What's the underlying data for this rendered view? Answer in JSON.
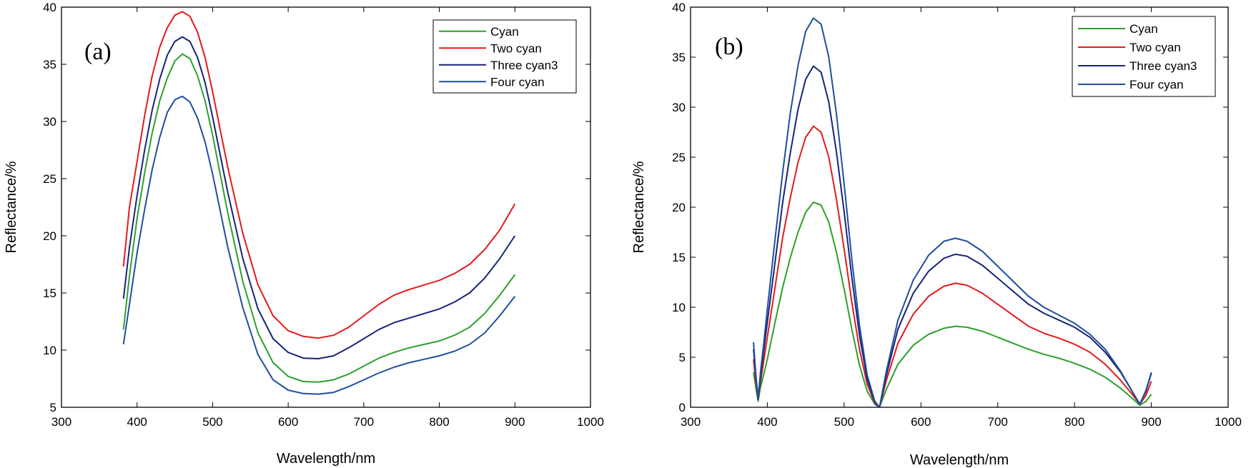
{
  "chart_data": [
    {
      "type": "line",
      "panel_label": "(a)",
      "xlabel": "Wavelength/nm",
      "ylabel": "Reflectance/%",
      "xlim": [
        300,
        1000
      ],
      "ylim": [
        5,
        40
      ],
      "xticks": [
        300,
        400,
        500,
        600,
        700,
        800,
        900,
        1000
      ],
      "yticks": [
        5,
        10,
        15,
        20,
        25,
        30,
        35,
        40
      ],
      "legend_position": "top-right",
      "series": [
        {
          "name": "Cyan",
          "color": "#2ca02c",
          "x": [
            382,
            390,
            400,
            410,
            420,
            430,
            440,
            450,
            460,
            470,
            480,
            490,
            500,
            520,
            540,
            560,
            580,
            600,
            620,
            640,
            660,
            680,
            700,
            720,
            740,
            760,
            780,
            800,
            820,
            840,
            860,
            880,
            900
          ],
          "y": [
            11.8,
            16.5,
            21.5,
            25.5,
            29,
            31.8,
            33.8,
            35.3,
            35.9,
            35.5,
            34,
            31.8,
            28.8,
            22,
            16,
            11.5,
            8.9,
            7.7,
            7.25,
            7.2,
            7.4,
            7.9,
            8.6,
            9.3,
            9.8,
            10.2,
            10.5,
            10.8,
            11.3,
            12,
            13.2,
            14.8,
            16.6
          ]
        },
        {
          "name": "Two cyan",
          "color": "#e31a1c",
          "x": [
            382,
            390,
            400,
            410,
            420,
            430,
            440,
            450,
            460,
            470,
            480,
            490,
            500,
            520,
            540,
            560,
            580,
            600,
            620,
            640,
            660,
            680,
            700,
            720,
            740,
            760,
            780,
            800,
            820,
            840,
            860,
            880,
            900
          ],
          "y": [
            17.3,
            22.5,
            26.5,
            30.5,
            34,
            36.5,
            38.2,
            39.3,
            39.6,
            39.2,
            37.8,
            35.6,
            32.6,
            26,
            20.2,
            15.7,
            13,
            11.7,
            11.2,
            11.05,
            11.3,
            12,
            13,
            14,
            14.8,
            15.3,
            15.7,
            16.1,
            16.7,
            17.5,
            18.8,
            20.5,
            22.8
          ]
        },
        {
          "name": "Three cyan3",
          "color": "#17237a",
          "x": [
            382,
            390,
            400,
            410,
            420,
            430,
            440,
            450,
            460,
            470,
            480,
            490,
            500,
            520,
            540,
            560,
            580,
            600,
            620,
            640,
            660,
            680,
            700,
            720,
            740,
            760,
            780,
            800,
            820,
            840,
            860,
            880,
            900
          ],
          "y": [
            14.5,
            19,
            23.5,
            27.5,
            31,
            33.7,
            35.8,
            37,
            37.4,
            37,
            35.6,
            33.4,
            30.4,
            23.8,
            18,
            13.6,
            11,
            9.8,
            9.3,
            9.25,
            9.5,
            10.2,
            11,
            11.8,
            12.4,
            12.8,
            13.2,
            13.6,
            14.2,
            15,
            16.3,
            18,
            20
          ]
        },
        {
          "name": "Four cyan",
          "color": "#1f4e9e",
          "x": [
            382,
            390,
            400,
            410,
            420,
            430,
            440,
            450,
            460,
            470,
            480,
            490,
            500,
            520,
            540,
            560,
            580,
            600,
            620,
            640,
            660,
            680,
            700,
            720,
            740,
            760,
            780,
            800,
            820,
            840,
            860,
            880,
            900
          ],
          "y": [
            10.5,
            14,
            18.5,
            22.3,
            25.8,
            28.6,
            30.8,
            31.9,
            32.2,
            31.7,
            30.3,
            28.2,
            25.4,
            19,
            13.7,
            9.6,
            7.4,
            6.5,
            6.2,
            6.15,
            6.3,
            6.8,
            7.4,
            8,
            8.5,
            8.9,
            9.2,
            9.5,
            9.9,
            10.5,
            11.5,
            13,
            14.7
          ]
        }
      ]
    },
    {
      "type": "line",
      "panel_label": "(b)",
      "xlabel": "Wavelength/nm",
      "ylabel": "Reflectance/%",
      "xlim": [
        300,
        1000
      ],
      "ylim": [
        0,
        40
      ],
      "xticks": [
        300,
        400,
        500,
        600,
        700,
        800,
        900,
        1000
      ],
      "yticks": [
        0,
        5,
        10,
        15,
        20,
        25,
        30,
        35,
        40
      ],
      "legend_position": "top-right",
      "series": [
        {
          "name": "Cyan",
          "color": "#2ca02c",
          "x": [
            382,
            385,
            388,
            391,
            395,
            400,
            410,
            420,
            430,
            440,
            450,
            460,
            470,
            480,
            490,
            500,
            510,
            520,
            530,
            540,
            546,
            555,
            570,
            590,
            610,
            630,
            645,
            660,
            680,
            700,
            720,
            740,
            760,
            780,
            800,
            820,
            840,
            860,
            875,
            885,
            893,
            900
          ],
          "y": [
            3.5,
            2.0,
            0.6,
            2.0,
            3.2,
            4.8,
            8.5,
            12,
            15,
            17.5,
            19.5,
            20.5,
            20.2,
            18.5,
            15.5,
            11.8,
            7.8,
            4.2,
            1.6,
            0.3,
            0.0,
            1.8,
            4.3,
            6.2,
            7.3,
            7.9,
            8.1,
            8.0,
            7.6,
            7.0,
            6.4,
            5.8,
            5.3,
            4.9,
            4.4,
            3.8,
            3.0,
            1.9,
            0.9,
            0.2,
            0.6,
            1.3
          ]
        },
        {
          "name": "Two cyan",
          "color": "#e31a1c",
          "x": [
            382,
            385,
            388,
            391,
            395,
            400,
            410,
            420,
            430,
            440,
            450,
            460,
            470,
            480,
            490,
            500,
            510,
            520,
            530,
            540,
            546,
            555,
            570,
            590,
            610,
            630,
            645,
            660,
            680,
            700,
            720,
            740,
            760,
            780,
            800,
            820,
            840,
            860,
            875,
            885,
            893,
            900
          ],
          "y": [
            4.8,
            2.5,
            0.8,
            2.5,
            4.5,
            7,
            12,
            17,
            21,
            24.5,
            27,
            28.1,
            27.5,
            25,
            20.8,
            15.8,
            10.5,
            5.8,
            2.3,
            0.4,
            0.0,
            2.7,
            6.4,
            9.3,
            11.1,
            12.1,
            12.4,
            12.2,
            11.4,
            10.3,
            9.2,
            8.1,
            7.4,
            6.9,
            6.3,
            5.5,
            4.3,
            2.7,
            1.3,
            0.3,
            1.2,
            2.6
          ]
        },
        {
          "name": "Three cyan3",
          "color": "#17237a",
          "x": [
            382,
            385,
            388,
            391,
            395,
            400,
            410,
            420,
            430,
            440,
            450,
            460,
            470,
            480,
            490,
            500,
            510,
            520,
            530,
            540,
            546,
            555,
            570,
            590,
            610,
            630,
            645,
            660,
            680,
            700,
            720,
            740,
            760,
            780,
            800,
            820,
            840,
            860,
            875,
            885,
            893,
            900
          ],
          "y": [
            5.8,
            3.0,
            0.8,
            3.0,
            5.5,
            8.5,
            14.5,
            20.5,
            25.5,
            29.8,
            32.8,
            34.1,
            33.5,
            30.5,
            25.5,
            19.5,
            13,
            7.2,
            2.8,
            0.5,
            0.0,
            3.2,
            7.8,
            11.4,
            13.6,
            14.9,
            15.3,
            15.1,
            14.2,
            12.9,
            11.6,
            10.3,
            9.4,
            8.7,
            8.0,
            7.0,
            5.5,
            3.5,
            1.6,
            0.3,
            1.6,
            3.4
          ]
        },
        {
          "name": "Four cyan",
          "color": "#1f4e9e",
          "x": [
            382,
            385,
            388,
            391,
            395,
            400,
            410,
            420,
            430,
            440,
            450,
            460,
            470,
            480,
            490,
            500,
            510,
            520,
            530,
            540,
            546,
            555,
            570,
            590,
            610,
            630,
            645,
            660,
            680,
            700,
            720,
            740,
            760,
            780,
            800,
            820,
            840,
            860,
            875,
            885,
            893,
            900
          ],
          "y": [
            6.5,
            3.3,
            0.9,
            3.5,
            6.2,
            9.8,
            16.8,
            23.5,
            29.5,
            34.2,
            37.6,
            38.9,
            38.3,
            35,
            29.3,
            22.3,
            14.8,
            8.2,
            3.2,
            0.6,
            0.0,
            3.6,
            8.7,
            12.7,
            15.2,
            16.6,
            16.9,
            16.6,
            15.6,
            14.1,
            12.6,
            11.1,
            10.0,
            9.2,
            8.4,
            7.3,
            5.8,
            3.6,
            1.6,
            0.3,
            1.7,
            3.5
          ]
        }
      ]
    }
  ]
}
